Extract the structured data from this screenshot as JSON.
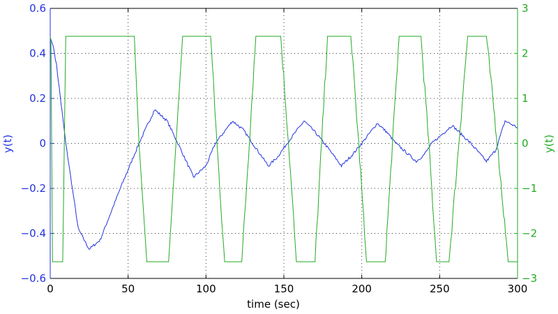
{
  "chart_data": {
    "type": "line",
    "title": "",
    "xlabel": "time (sec)",
    "ylabel_left": "y(t)",
    "ylabel_right": "y(t)",
    "xlim": [
      0,
      300
    ],
    "ylim_left": [
      -0.6,
      0.6
    ],
    "ylim_right": [
      -3,
      3
    ],
    "grid": true,
    "xticks": [
      "0",
      "50",
      "100",
      "150",
      "200",
      "250",
      "300"
    ],
    "xtick_values": [
      0,
      50,
      100,
      150,
      200,
      250,
      300
    ],
    "yticks_left": [
      "0.6",
      "0.4",
      "0.2",
      "0",
      "−0.2",
      "−0.4",
      "−0.6"
    ],
    "ytick_values_left": [
      0.6,
      0.4,
      0.2,
      0,
      -0.2,
      -0.4,
      -0.6
    ],
    "yticks_right": [
      "3",
      "2",
      "1",
      "0",
      "−1",
      "−2",
      "−3"
    ],
    "ytick_values_right": [
      3,
      2,
      1,
      0,
      -1,
      -2,
      -3
    ],
    "series": [
      {
        "name": "y(t) left",
        "axis": "left",
        "color": "#2233dd",
        "x": [
          0,
          2,
          4,
          10,
          18,
          25,
          32,
          45,
          57,
          67,
          75,
          82,
          92,
          100,
          106,
          117,
          124,
          130,
          140,
          146,
          152,
          163,
          170,
          176,
          187,
          194,
          200,
          210,
          216,
          222,
          235,
          240,
          245,
          258,
          264,
          270,
          280,
          286,
          292,
          300
        ],
        "y": [
          0.47,
          0.43,
          0.35,
          0.0,
          -0.38,
          -0.47,
          -0.43,
          -0.2,
          0.0,
          0.15,
          0.1,
          0.0,
          -0.15,
          -0.1,
          0.0,
          0.1,
          0.06,
          0.0,
          -0.1,
          -0.06,
          0.0,
          0.1,
          0.05,
          0.0,
          -0.1,
          -0.05,
          0.0,
          0.09,
          0.05,
          0.0,
          -0.08,
          -0.05,
          0.0,
          0.08,
          0.04,
          0.0,
          -0.08,
          -0.03,
          0.1,
          0.07
        ]
      },
      {
        "name": "y(t) right",
        "axis": "right",
        "color": "#22aa22",
        "x": [
          0,
          0.5,
          1.5,
          8,
          10,
          54,
          57,
          62,
          76,
          85,
          103,
          107,
          112,
          123,
          132,
          148,
          153,
          158,
          170,
          178,
          193,
          198,
          203,
          215,
          224,
          238,
          243,
          248,
          256,
          268,
          280,
          287,
          294,
          300
        ],
        "y": [
          2.38,
          2.2,
          -2.63,
          -2.63,
          2.38,
          2.38,
          0.0,
          -2.63,
          -2.63,
          2.38,
          2.38,
          0.0,
          -2.63,
          -2.63,
          2.38,
          2.38,
          0.0,
          -2.63,
          -2.63,
          2.38,
          2.38,
          0.0,
          -2.63,
          -2.63,
          2.38,
          2.38,
          0.0,
          -2.63,
          -2.63,
          2.38,
          2.38,
          0.0,
          -2.63,
          -2.63
        ]
      }
    ]
  }
}
